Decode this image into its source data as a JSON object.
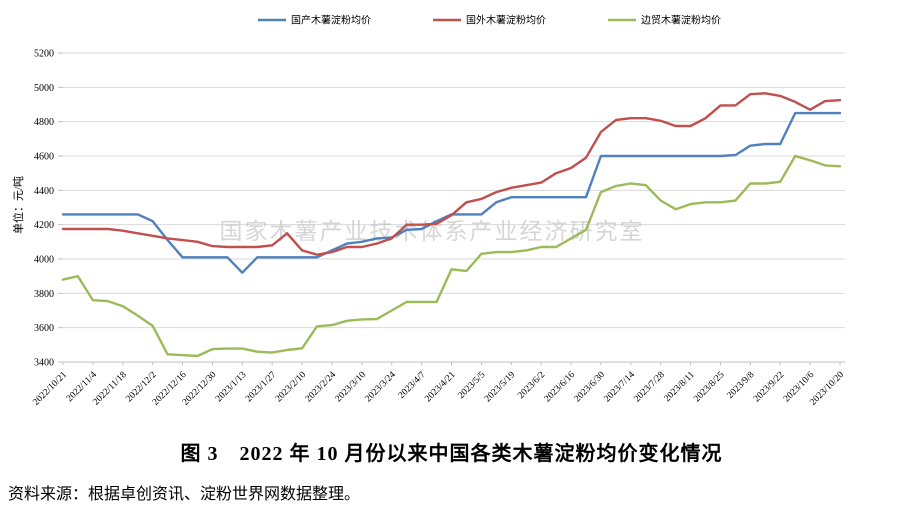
{
  "legend": {
    "items": [
      {
        "label": "国产木薯淀粉均价",
        "color": "#4F81BD"
      },
      {
        "label": "国外木薯淀粉均价",
        "color": "#C0504D"
      },
      {
        "label": "边贸木薯淀粉均价",
        "color": "#9BBB59"
      }
    ]
  },
  "watermark": "国家木薯产业技术体系产业经济研究室",
  "title": "图 3　2022 年 10 月份以来中国各类木薯淀粉均价变化情况",
  "source": "资料来源：根据卓创资讯、淀粉世界网数据整理。",
  "chart_data": {
    "type": "line",
    "ylabel": "单位：元/吨",
    "ylim": [
      3400,
      5200
    ],
    "ytick_step": 200,
    "grid": true,
    "legend_position": "top",
    "x_label_interval_points": 2,
    "x_labels": [
      "2022/10/21",
      "2022/11/4",
      "2022/11/18",
      "2022/12/2",
      "2022/12/16",
      "2022/12/30",
      "2023/1/13",
      "2023/1/27",
      "2023/2/10",
      "2023/2/24",
      "2023/3/10",
      "2023/3/24",
      "2023/4/7",
      "2023/4/21",
      "2023/5/5",
      "2023/5/19",
      "2023/6/2",
      "2023/6/16",
      "2023/6/30",
      "2023/7/14",
      "2023/7/28",
      "2023/8/11",
      "2023/8/25",
      "2023/9/8",
      "2023/9/22",
      "2023/10/6",
      "2023/10/20"
    ],
    "series": [
      {
        "name": "国产木薯淀粉均价",
        "color": "#4F81BD",
        "values": [
          4260,
          4260,
          4260,
          4260,
          4260,
          4260,
          4220,
          4110,
          4010,
          4010,
          4010,
          4010,
          3920,
          4010,
          4010,
          4010,
          4010,
          4010,
          4050,
          4090,
          4100,
          4120,
          4125,
          4170,
          4175,
          4220,
          4260,
          4260,
          4260,
          4330,
          4360,
          4360,
          4360,
          4360,
          4360,
          4360,
          4600,
          4600,
          4600,
          4600,
          4600,
          4600,
          4600,
          4600,
          4600,
          4605,
          4660,
          4670,
          4670,
          4850,
          4850,
          4850,
          4850
        ]
      },
      {
        "name": "国外木薯淀粉均价",
        "color": "#C0504D",
        "values": [
          4175,
          4175,
          4175,
          4175,
          4165,
          4150,
          4135,
          4120,
          4110,
          4100,
          4075,
          4070,
          4070,
          4070,
          4080,
          4150,
          4050,
          4025,
          4040,
          4070,
          4070,
          4090,
          4120,
          4200,
          4200,
          4205,
          4255,
          4330,
          4350,
          4390,
          4415,
          4430,
          4445,
          4500,
          4530,
          4590,
          4740,
          4810,
          4820,
          4820,
          4805,
          4775,
          4775,
          4820,
          4895,
          4895,
          4960,
          4965,
          4950,
          4915,
          4870,
          4920,
          4925
        ]
      },
      {
        "name": "边贸木薯淀粉均价",
        "color": "#9BBB59",
        "values": [
          3880,
          3900,
          3760,
          3755,
          3725,
          3670,
          3610,
          3445,
          3440,
          3435,
          3475,
          3478,
          3478,
          3460,
          3455,
          3470,
          3480,
          3608,
          3615,
          3640,
          3648,
          3650,
          3700,
          3750,
          3750,
          3750,
          3940,
          3930,
          4030,
          4040,
          4040,
          4050,
          4070,
          4070,
          4120,
          4170,
          4390,
          4425,
          4440,
          4430,
          4340,
          4290,
          4320,
          4330,
          4330,
          4340,
          4440,
          4440,
          4450,
          4600,
          4575,
          4545,
          4540
        ]
      }
    ]
  },
  "colors": {
    "gridline": "#D9D9D9",
    "axis": "#BFBFBF",
    "watermark": "#BDBDBD"
  }
}
